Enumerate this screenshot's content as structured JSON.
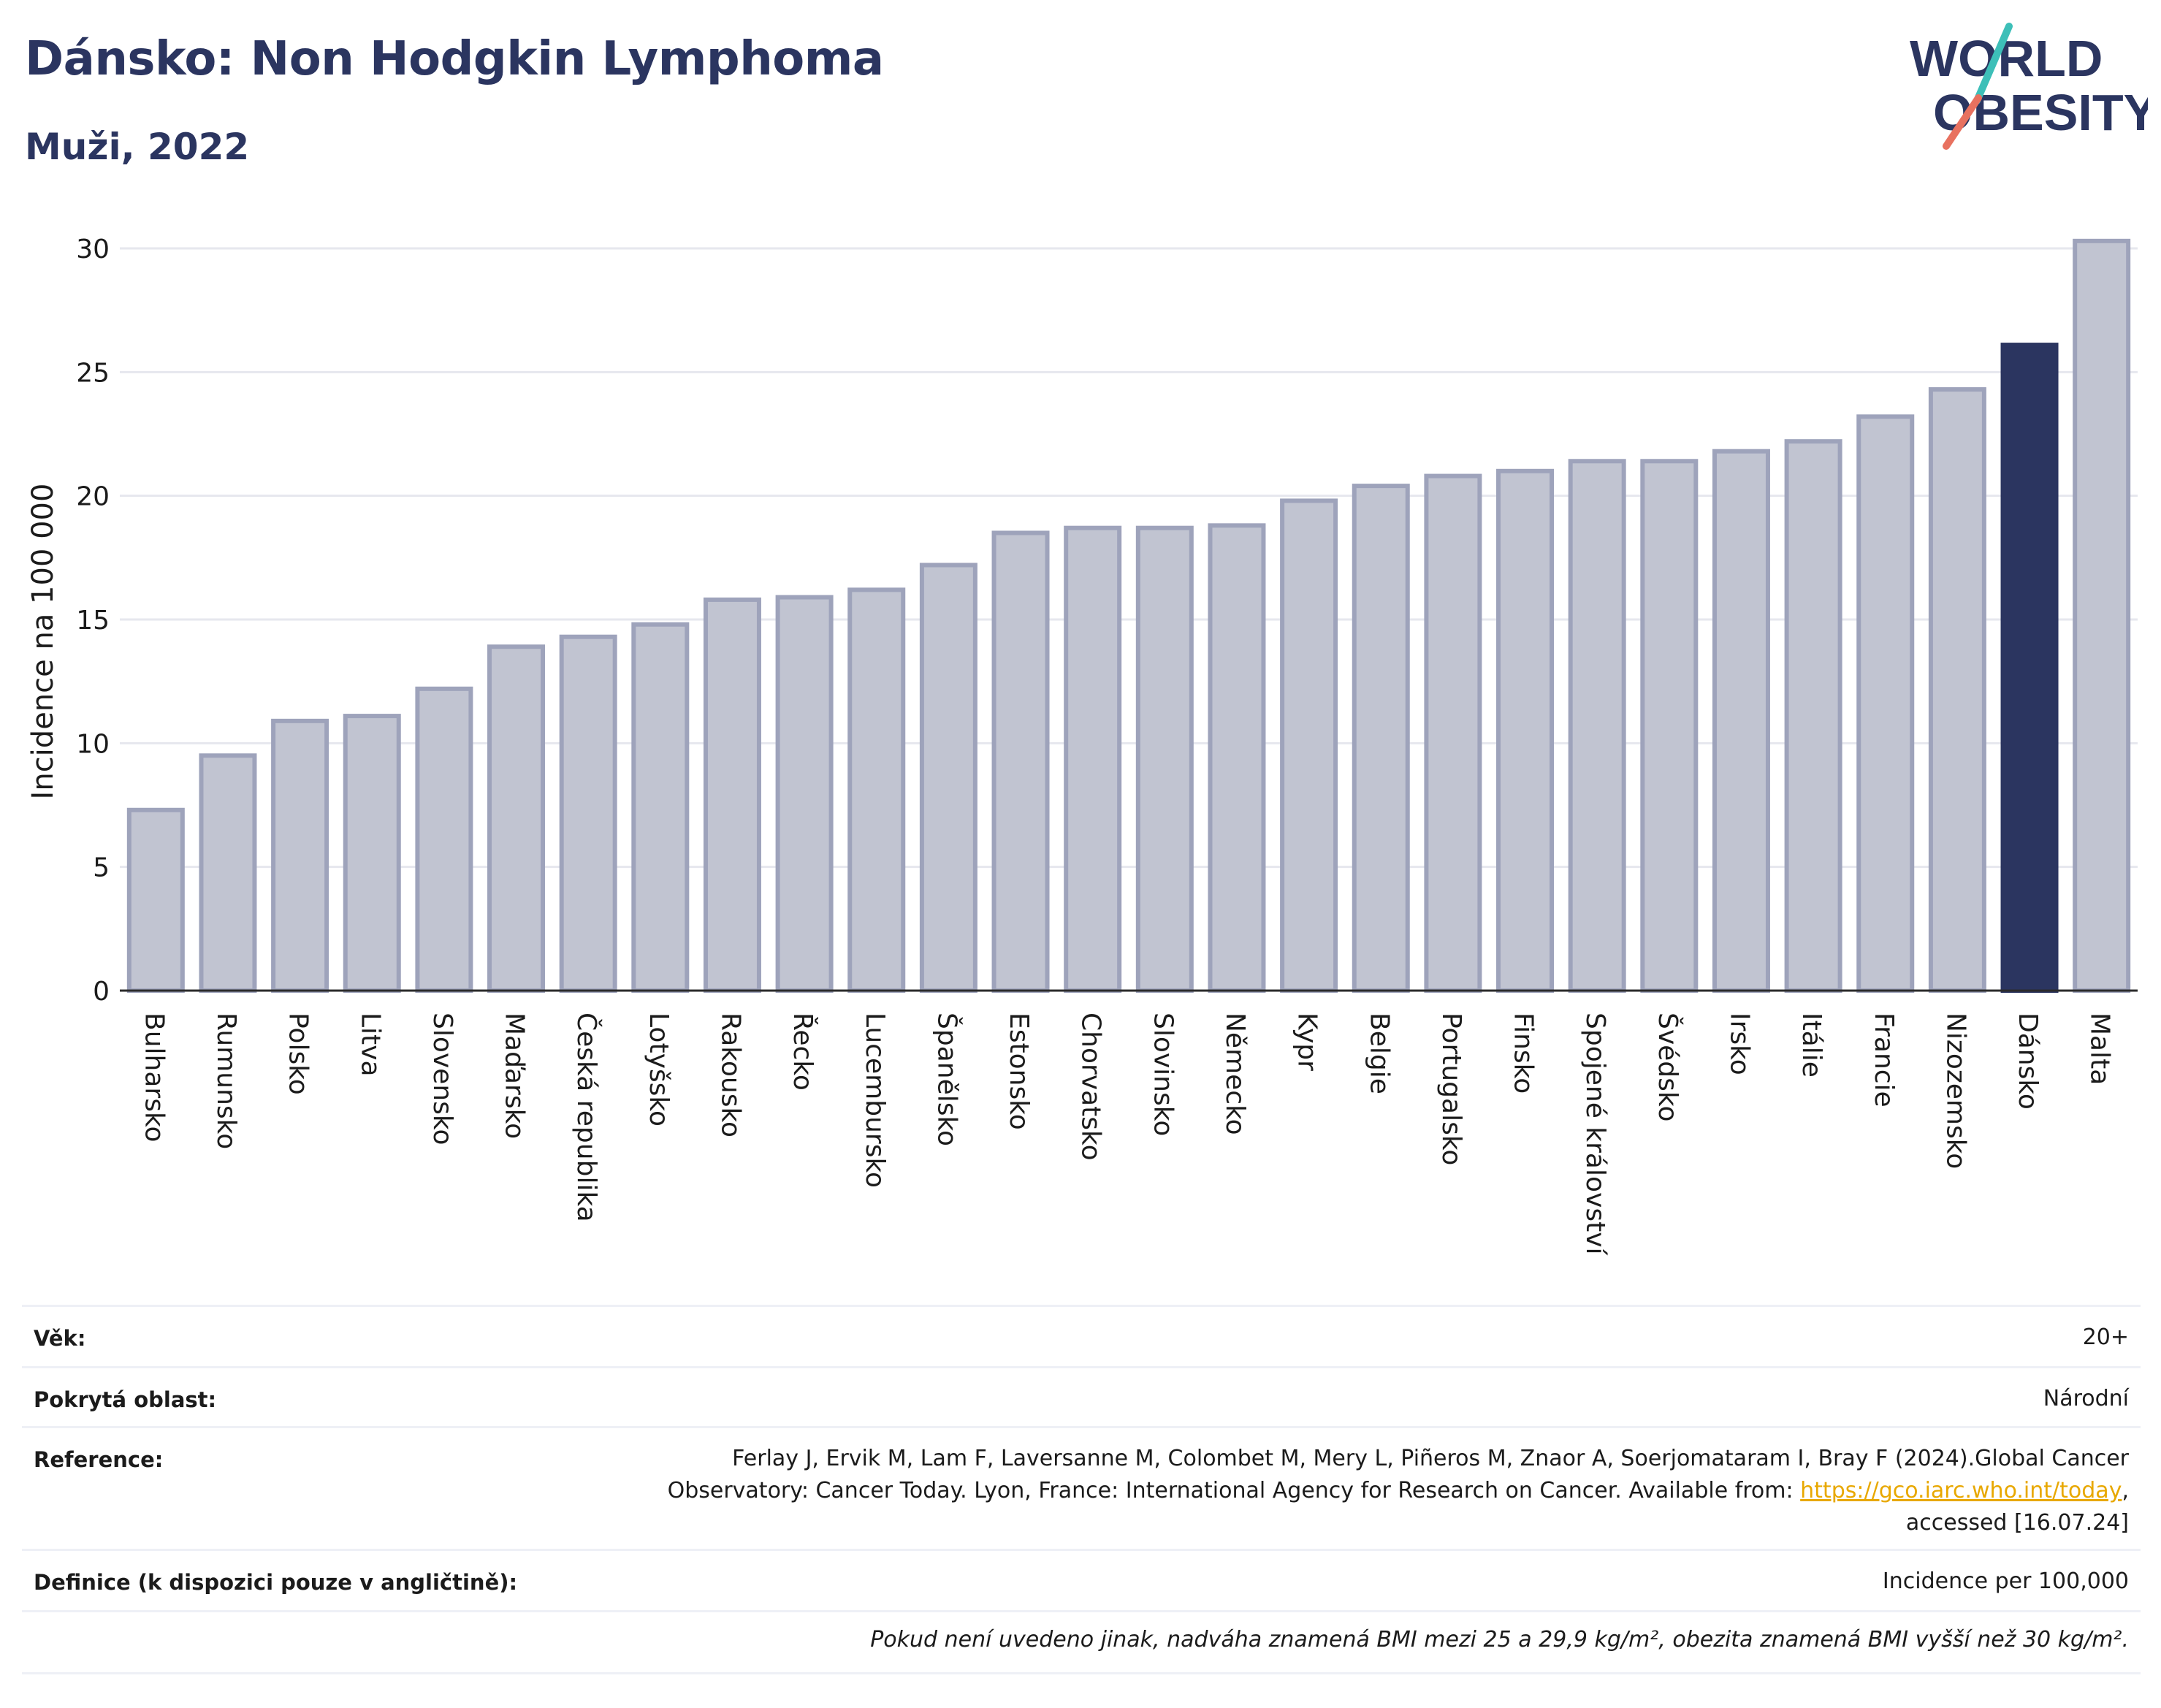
{
  "header": {
    "title": "Dánsko: Non Hodgkin Lymphoma",
    "subtitle": "Muži, 2022",
    "logo_line1": "WORLD",
    "logo_line2": "OBESITY"
  },
  "colors": {
    "title": "#2b3560",
    "bar_default": "#c1c4d1",
    "bar_default_stroke": "#9ea3bb",
    "bar_highlight": "#2b3560",
    "grid": "#e6e7ee",
    "logo_slash_top": "#3dbfb8",
    "logo_slash_bottom": "#e8715f",
    "link": "#e8a800"
  },
  "chart_data": {
    "type": "bar",
    "ylabel": "Incidence na 100 000",
    "ylim": [
      0,
      31
    ],
    "yticks": [
      0,
      5,
      10,
      15,
      20,
      25,
      30
    ],
    "grid": true,
    "highlight": "Dánsko",
    "categories": [
      "Bulharsko",
      "Rumunsko",
      "Polsko",
      "Litva",
      "Slovensko",
      "Maďarsko",
      "Česká republika",
      "Lotyšsko",
      "Rakousko",
      "Řecko",
      "Lucembursko",
      "Španělsko",
      "Estonsko",
      "Chorvatsko",
      "Slovinsko",
      "Německo",
      "Kypr",
      "Belgie",
      "Portugalsko",
      "Finsko",
      "Spojené království",
      "Švédsko",
      "Irsko",
      "Itálie",
      "Francie",
      "Nizozemsko",
      "Dánsko",
      "Malta"
    ],
    "values": [
      7.3,
      9.5,
      10.9,
      11.1,
      12.2,
      13.9,
      14.3,
      14.8,
      15.8,
      15.9,
      16.2,
      17.2,
      18.5,
      18.7,
      18.7,
      18.8,
      19.8,
      20.4,
      20.8,
      21.0,
      21.4,
      21.4,
      21.8,
      22.2,
      23.2,
      24.3,
      26.1,
      30.3
    ]
  },
  "info": {
    "age_label": "Věk:",
    "age_value": "20+",
    "area_label": "Pokrytá oblast:",
    "area_value": "Národní",
    "reference_label": "Reference:",
    "reference_line1": "Ferlay J, Ervik M, Lam F, Laversanne M, Colombet M, Mery L, Piñeros M, Znaor A, Soerjomataram I, Bray F (2024).Global Cancer",
    "reference_line2": "Observatory: Cancer Today. Lyon, France: International Agency for Research on Cancer. Available from:",
    "reference_link": "https://gco.iarc.who.int/today",
    "reference_line3": "accessed [16.07.24]",
    "definition_label": "Definice (k dispozici pouze v angličtině):",
    "definition_value": "Incidence per 100,000",
    "footnote": "Pokud není uvedeno jinak, nadváha znamená BMI mezi 25 a 29,9 kg/m², obezita znamená BMI vyšší než 30 kg/m²."
  }
}
